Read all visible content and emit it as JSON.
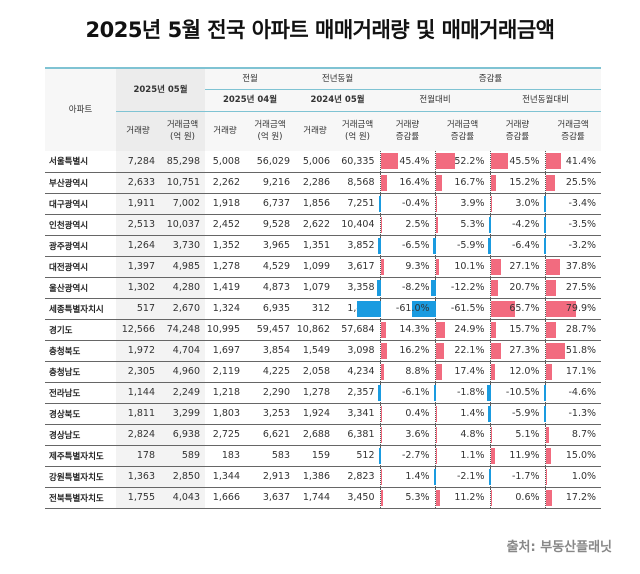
{
  "title": "2025년 5월 전국 아파트 매매거래량 및 매매거래금액",
  "source": "출처: 부동산플래닛",
  "colors": {
    "positive_bar": "#f26b7f",
    "negative_bar": "#1a9be0",
    "header_line": "#7fc3d3"
  },
  "chart_data": {
    "type": "table",
    "headers": {
      "region": "아파트",
      "current": "2025년 05월",
      "prev_month": "전월",
      "prev_month_date": "2025년 04월",
      "prev_year": "전년동월",
      "prev_year_date": "2024년 05월",
      "change": "증감률",
      "mom": "전월대비",
      "yoy": "전년동월대비",
      "volume": "거래량",
      "amount": "거래금액\n(억 원)",
      "volume_rate": "거래량\n증감률",
      "amount_rate": "거래금액\n증감률"
    },
    "rows": [
      [
        "서울특별시",
        "7,284",
        "85,298",
        "5,008",
        "56,029",
        "5,006",
        "60,335",
        45.4,
        52.2,
        45.5,
        41.4
      ],
      [
        "부산광역시",
        "2,633",
        "10,751",
        "2,262",
        "9,216",
        "2,286",
        "8,568",
        16.4,
        16.7,
        15.2,
        25.5
      ],
      [
        "대구광역시",
        "1,911",
        "7,002",
        "1,918",
        "6,737",
        "1,856",
        "7,251",
        -0.4,
        3.9,
        3.0,
        -3.4
      ],
      [
        "인천광역시",
        "2,513",
        "10,037",
        "2,452",
        "9,528",
        "2,622",
        "10,404",
        2.5,
        5.3,
        -4.2,
        -3.5
      ],
      [
        "광주광역시",
        "1,264",
        "3,730",
        "1,352",
        "3,965",
        "1,351",
        "3,852",
        -6.5,
        -5.9,
        -6.4,
        -3.2
      ],
      [
        "대전광역시",
        "1,397",
        "4,985",
        "1,278",
        "4,529",
        "1,099",
        "3,617",
        9.3,
        10.1,
        27.1,
        37.8
      ],
      [
        "울산광역시",
        "1,302",
        "4,280",
        "1,419",
        "4,873",
        "1,079",
        "3,358",
        -8.2,
        -12.2,
        20.7,
        27.5
      ],
      [
        "세종특별자치시",
        "517",
        "2,670",
        "1,324",
        "6,935",
        "312",
        "1,484",
        -61.0,
        -61.5,
        65.7,
        79.9
      ],
      [
        "경기도",
        "12,566",
        "74,248",
        "10,995",
        "59,457",
        "10,862",
        "57,684",
        14.3,
        24.9,
        15.7,
        28.7
      ],
      [
        "충청북도",
        "1,972",
        "4,704",
        "1,697",
        "3,854",
        "1,549",
        "3,098",
        16.2,
        22.1,
        27.3,
        51.8
      ],
      [
        "충청남도",
        "2,305",
        "4,960",
        "2,119",
        "4,225",
        "2,058",
        "4,234",
        8.8,
        17.4,
        12.0,
        17.1
      ],
      [
        "전라남도",
        "1,144",
        "2,249",
        "1,218",
        "2,290",
        "1,278",
        "2,357",
        -6.1,
        -1.8,
        -10.5,
        -4.6
      ],
      [
        "경상북도",
        "1,811",
        "3,299",
        "1,803",
        "3,253",
        "1,924",
        "3,341",
        0.4,
        1.4,
        -5.9,
        -1.3
      ],
      [
        "경상남도",
        "2,824",
        "6,938",
        "2,725",
        "6,621",
        "2,688",
        "6,381",
        3.6,
        4.8,
        5.1,
        8.7
      ],
      [
        "제주특별자치도",
        "178",
        "589",
        "183",
        "583",
        "159",
        "512",
        -2.7,
        1.1,
        11.9,
        15.0
      ],
      [
        "강원특별자치도",
        "1,363",
        "2,850",
        "1,344",
        "2,913",
        "1,386",
        "2,823",
        1.4,
        -2.1,
        -1.7,
        1.0
      ],
      [
        "전북특별자치도",
        "1,755",
        "4,043",
        "1,666",
        "3,637",
        "1,744",
        "3,450",
        5.3,
        11.2,
        0.6,
        17.2
      ]
    ]
  }
}
